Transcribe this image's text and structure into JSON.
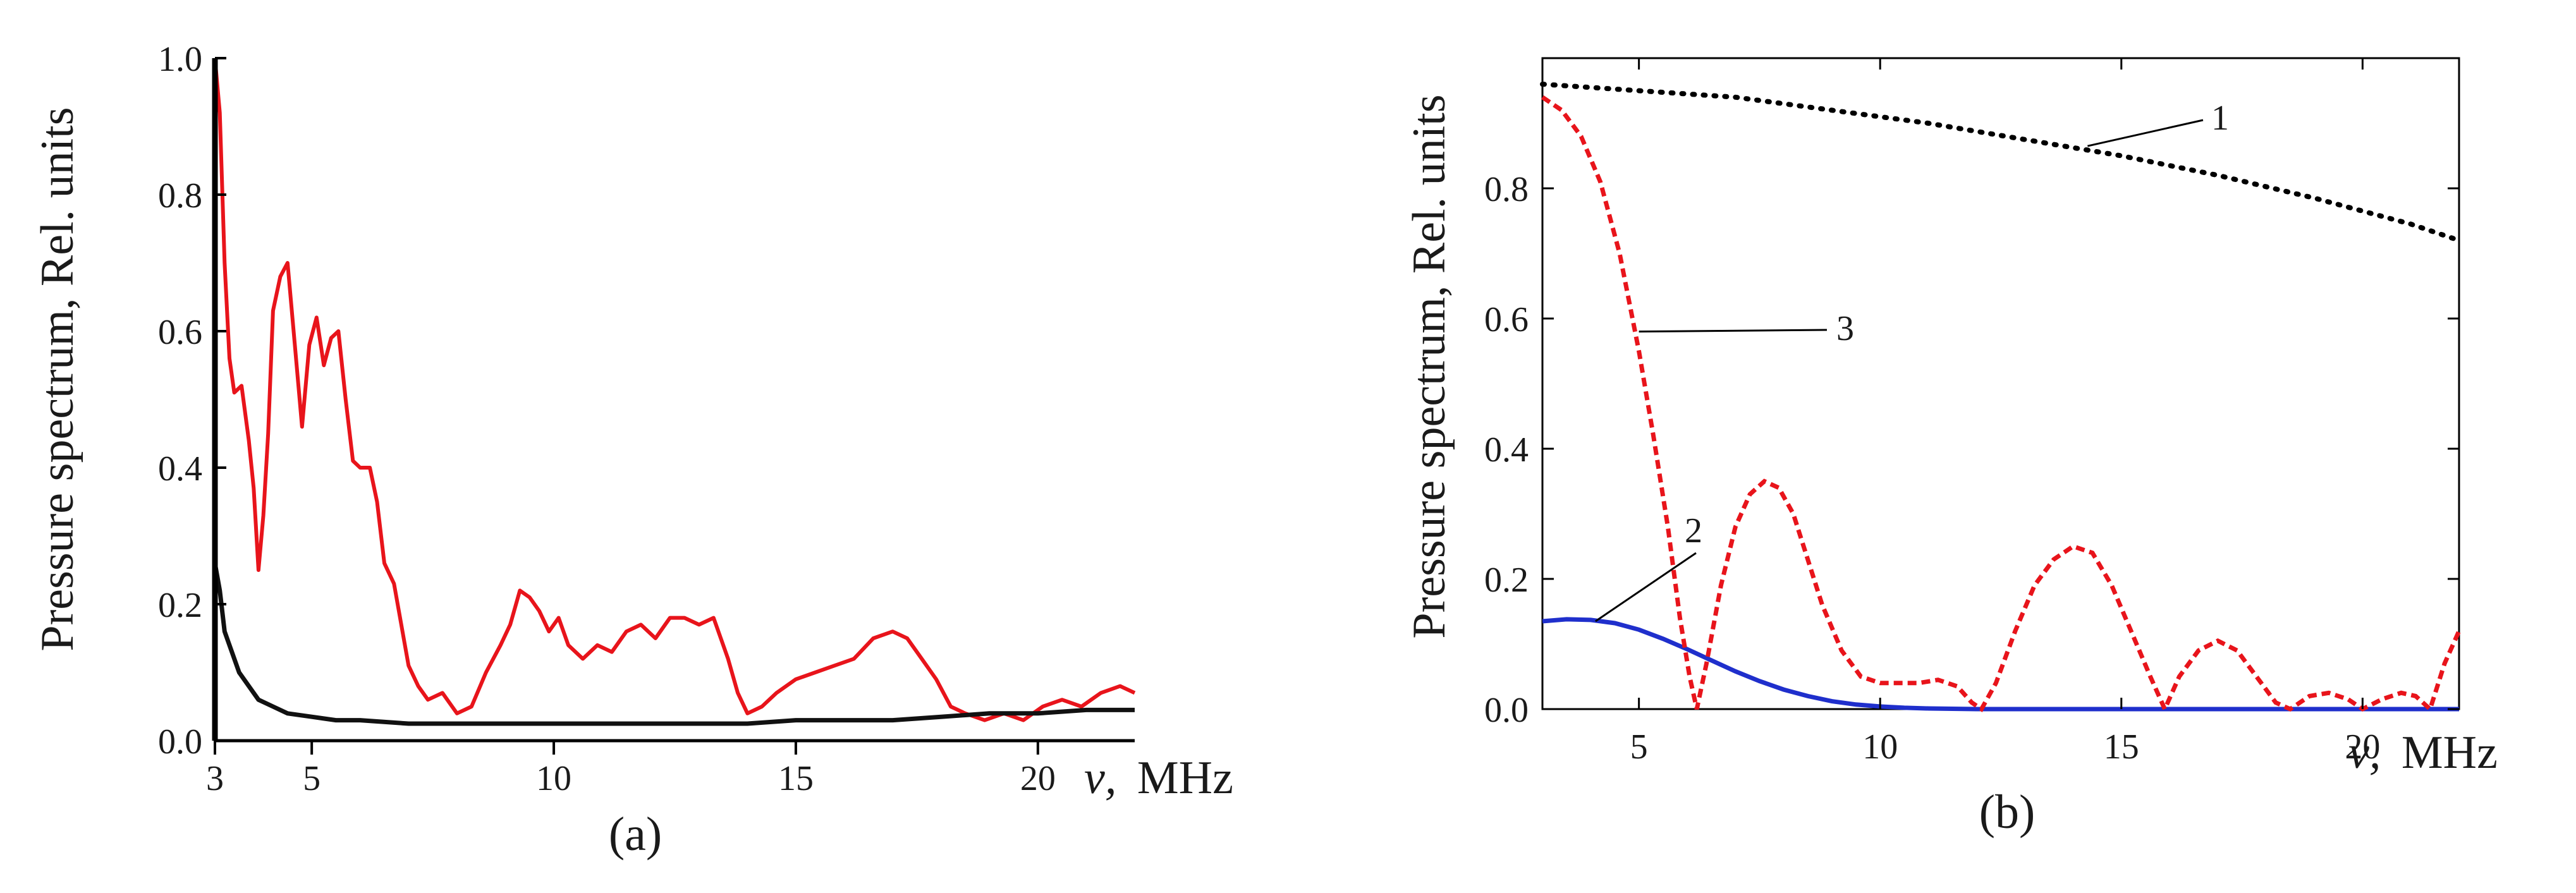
{
  "chart_data": [
    {
      "panel": "a",
      "type": "line",
      "caption": "(a)",
      "ylabel": "Pressure spectrum, Rel. units",
      "xlabel_symbol": "ν,",
      "xlabel_unit": "MHz",
      "xlim": [
        3,
        22
      ],
      "ylim": [
        0,
        1
      ],
      "xticks": [
        3,
        5,
        10,
        15,
        20
      ],
      "yticks": [
        "0.0",
        "0.2",
        "0.4",
        "0.6",
        "0.8",
        "1.0"
      ],
      "grid": false,
      "series": [
        {
          "name": "red spectrum",
          "color": "#e8141b",
          "points": [
            [
              3.0,
              1.0
            ],
            [
              3.1,
              0.92
            ],
            [
              3.2,
              0.7
            ],
            [
              3.3,
              0.56
            ],
            [
              3.4,
              0.51
            ],
            [
              3.55,
              0.52
            ],
            [
              3.7,
              0.44
            ],
            [
              3.8,
              0.37
            ],
            [
              3.9,
              0.25
            ],
            [
              4.0,
              0.33
            ],
            [
              4.1,
              0.45
            ],
            [
              4.2,
              0.63
            ],
            [
              4.35,
              0.68
            ],
            [
              4.5,
              0.7
            ],
            [
              4.65,
              0.58
            ],
            [
              4.8,
              0.46
            ],
            [
              4.95,
              0.58
            ],
            [
              5.1,
              0.62
            ],
            [
              5.25,
              0.55
            ],
            [
              5.4,
              0.59
            ],
            [
              5.55,
              0.6
            ],
            [
              5.7,
              0.5
            ],
            [
              5.85,
              0.41
            ],
            [
              6.0,
              0.4
            ],
            [
              6.2,
              0.4
            ],
            [
              6.35,
              0.35
            ],
            [
              6.5,
              0.26
            ],
            [
              6.7,
              0.23
            ],
            [
              6.85,
              0.17
            ],
            [
              7.0,
              0.11
            ],
            [
              7.2,
              0.08
            ],
            [
              7.4,
              0.06
            ],
            [
              7.7,
              0.07
            ],
            [
              8.0,
              0.04
            ],
            [
              8.3,
              0.05
            ],
            [
              8.6,
              0.1
            ],
            [
              8.9,
              0.14
            ],
            [
              9.1,
              0.17
            ],
            [
              9.3,
              0.22
            ],
            [
              9.5,
              0.21
            ],
            [
              9.7,
              0.19
            ],
            [
              9.9,
              0.16
            ],
            [
              10.1,
              0.18
            ],
            [
              10.3,
              0.14
            ],
            [
              10.6,
              0.12
            ],
            [
              10.9,
              0.14
            ],
            [
              11.2,
              0.13
            ],
            [
              11.5,
              0.16
            ],
            [
              11.8,
              0.17
            ],
            [
              12.1,
              0.15
            ],
            [
              12.4,
              0.18
            ],
            [
              12.7,
              0.18
            ],
            [
              13.0,
              0.17
            ],
            [
              13.3,
              0.18
            ],
            [
              13.6,
              0.12
            ],
            [
              13.8,
              0.07
            ],
            [
              14.0,
              0.04
            ],
            [
              14.3,
              0.05
            ],
            [
              14.6,
              0.07
            ],
            [
              15.0,
              0.09
            ],
            [
              15.4,
              0.1
            ],
            [
              15.8,
              0.11
            ],
            [
              16.2,
              0.12
            ],
            [
              16.6,
              0.15
            ],
            [
              17.0,
              0.16
            ],
            [
              17.3,
              0.15
            ],
            [
              17.6,
              0.12
            ],
            [
              17.9,
              0.09
            ],
            [
              18.2,
              0.05
            ],
            [
              18.5,
              0.04
            ],
            [
              18.9,
              0.03
            ],
            [
              19.3,
              0.04
            ],
            [
              19.7,
              0.03
            ],
            [
              20.1,
              0.05
            ],
            [
              20.5,
              0.06
            ],
            [
              20.9,
              0.05
            ],
            [
              21.3,
              0.07
            ],
            [
              21.7,
              0.08
            ],
            [
              22.0,
              0.07
            ]
          ]
        },
        {
          "name": "black spectrum",
          "color": "#111111",
          "points": [
            [
              3.0,
              0.26
            ],
            [
              3.1,
              0.22
            ],
            [
              3.2,
              0.16
            ],
            [
              3.35,
              0.13
            ],
            [
              3.5,
              0.1
            ],
            [
              3.7,
              0.08
            ],
            [
              3.9,
              0.06
            ],
            [
              4.2,
              0.05
            ],
            [
              4.5,
              0.04
            ],
            [
              5.0,
              0.035
            ],
            [
              5.5,
              0.03
            ],
            [
              6.0,
              0.03
            ],
            [
              7.0,
              0.025
            ],
            [
              8.0,
              0.025
            ],
            [
              9.0,
              0.025
            ],
            [
              10.0,
              0.025
            ],
            [
              11.0,
              0.025
            ],
            [
              12.0,
              0.025
            ],
            [
              13.0,
              0.025
            ],
            [
              14.0,
              0.025
            ],
            [
              15.0,
              0.03
            ],
            [
              16.0,
              0.03
            ],
            [
              17.0,
              0.03
            ],
            [
              18.0,
              0.035
            ],
            [
              19.0,
              0.04
            ],
            [
              20.0,
              0.04
            ],
            [
              21.0,
              0.045
            ],
            [
              22.0,
              0.045
            ]
          ]
        }
      ]
    },
    {
      "panel": "b",
      "type": "line",
      "caption": "(b)",
      "ylabel": "Pressure spectrum, Rel. units",
      "xlabel_symbol": "ν,",
      "xlabel_unit": "MHz",
      "xlim": [
        3,
        22
      ],
      "ylim": [
        0,
        1
      ],
      "xticks": [
        5,
        10,
        15,
        20
      ],
      "yticks": [
        "0.0",
        "0.2",
        "0.4",
        "0.6",
        "0.8"
      ],
      "grid": false,
      "series": [
        {
          "name": "1",
          "color": "#000000",
          "style": "dotted",
          "points": [
            [
              3.0,
              0.96
            ],
            [
              5.0,
              0.95
            ],
            [
              7.0,
              0.94
            ],
            [
              9.0,
              0.92
            ],
            [
              11.0,
              0.9
            ],
            [
              13.0,
              0.875
            ],
            [
              15.0,
              0.85
            ],
            [
              17.0,
              0.82
            ],
            [
              19.0,
              0.785
            ],
            [
              21.0,
              0.745
            ],
            [
              22.0,
              0.72
            ]
          ]
        },
        {
          "name": "2",
          "color": "#1f2fcc",
          "style": "solid",
          "points": [
            [
              3.0,
              0.135
            ],
            [
              3.5,
              0.138
            ],
            [
              4.0,
              0.137
            ],
            [
              4.5,
              0.132
            ],
            [
              5.0,
              0.122
            ],
            [
              5.5,
              0.108
            ],
            [
              6.0,
              0.092
            ],
            [
              6.5,
              0.075
            ],
            [
              7.0,
              0.058
            ],
            [
              7.5,
              0.043
            ],
            [
              8.0,
              0.03
            ],
            [
              8.5,
              0.02
            ],
            [
              9.0,
              0.012
            ],
            [
              9.5,
              0.007
            ],
            [
              10.0,
              0.004
            ],
            [
              10.5,
              0.002
            ],
            [
              11.0,
              0.001
            ],
            [
              12.0,
              0.0
            ],
            [
              22.0,
              0.0
            ]
          ]
        },
        {
          "name": "3",
          "color": "#e8141b",
          "style": "dashed",
          "points": [
            [
              3.0,
              0.94
            ],
            [
              3.4,
              0.92
            ],
            [
              3.8,
              0.88
            ],
            [
              4.2,
              0.81
            ],
            [
              4.6,
              0.7
            ],
            [
              5.0,
              0.55
            ],
            [
              5.3,
              0.42
            ],
            [
              5.6,
              0.28
            ],
            [
              5.85,
              0.14
            ],
            [
              6.05,
              0.05
            ],
            [
              6.2,
              0.0
            ],
            [
              6.4,
              0.07
            ],
            [
              6.7,
              0.19
            ],
            [
              7.0,
              0.28
            ],
            [
              7.3,
              0.33
            ],
            [
              7.6,
              0.35
            ],
            [
              7.9,
              0.34
            ],
            [
              8.2,
              0.3
            ],
            [
              8.5,
              0.23
            ],
            [
              8.8,
              0.16
            ],
            [
              9.2,
              0.09
            ],
            [
              9.6,
              0.05
            ],
            [
              10.0,
              0.04
            ],
            [
              10.4,
              0.04
            ],
            [
              10.8,
              0.04
            ],
            [
              11.2,
              0.045
            ],
            [
              11.6,
              0.035
            ],
            [
              11.9,
              0.01
            ],
            [
              12.1,
              0.0
            ],
            [
              12.4,
              0.04
            ],
            [
              12.8,
              0.12
            ],
            [
              13.2,
              0.19
            ],
            [
              13.6,
              0.23
            ],
            [
              14.0,
              0.25
            ],
            [
              14.4,
              0.24
            ],
            [
              14.8,
              0.19
            ],
            [
              15.2,
              0.12
            ],
            [
              15.6,
              0.05
            ],
            [
              15.9,
              0.0
            ],
            [
              16.2,
              0.05
            ],
            [
              16.6,
              0.09
            ],
            [
              17.0,
              0.105
            ],
            [
              17.4,
              0.09
            ],
            [
              17.8,
              0.05
            ],
            [
              18.2,
              0.01
            ],
            [
              18.5,
              0.0
            ],
            [
              18.9,
              0.02
            ],
            [
              19.3,
              0.025
            ],
            [
              19.7,
              0.015
            ],
            [
              20.0,
              0.0
            ],
            [
              20.4,
              0.015
            ],
            [
              20.8,
              0.025
            ],
            [
              21.1,
              0.02
            ],
            [
              21.4,
              0.0
            ],
            [
              21.7,
              0.07
            ],
            [
              22.0,
              0.12
            ]
          ]
        }
      ],
      "callouts": [
        {
          "label": "1"
        },
        {
          "label": "2"
        },
        {
          "label": "3"
        }
      ]
    }
  ]
}
